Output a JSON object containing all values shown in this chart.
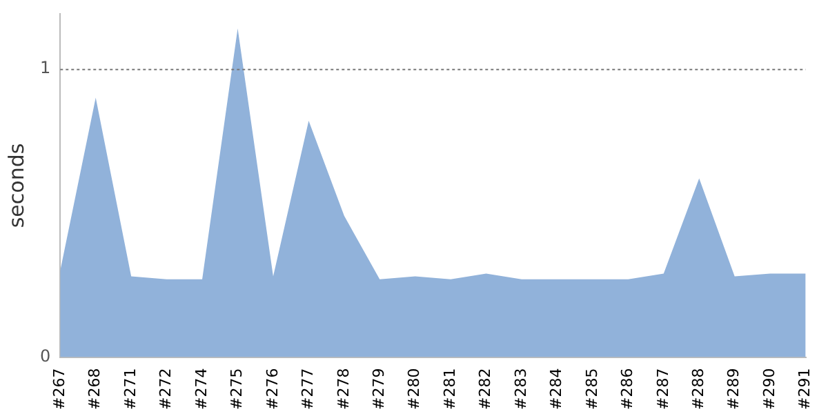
{
  "chart_data": {
    "type": "area",
    "ylabel": "seconds",
    "categories": [
      "#267",
      "#268",
      "#271",
      "#272",
      "#274",
      "#275",
      "#276",
      "#277",
      "#278",
      "#279",
      "#280",
      "#281",
      "#282",
      "#283",
      "#284",
      "#285",
      "#286",
      "#287",
      "#288",
      "#289",
      "#290",
      "#291"
    ],
    "series": [
      {
        "color": "#91b2da",
        "values": [
          0.3,
          0.9,
          0.28,
          0.27,
          0.27,
          1.14,
          0.28,
          0.82,
          0.49,
          0.27,
          0.28,
          0.27,
          0.29,
          0.27,
          0.27,
          0.27,
          0.27,
          0.29,
          0.62,
          0.28,
          0.29,
          0.29
        ]
      }
    ],
    "ylim": [
      0,
      1.19
    ],
    "yticks": [
      0,
      1
    ],
    "ref_lines": [
      {
        "axis": "y",
        "value": 1,
        "color": "#777777",
        "line_style": "dotted"
      }
    ],
    "grid": false,
    "legend": false,
    "marker": "none"
  }
}
